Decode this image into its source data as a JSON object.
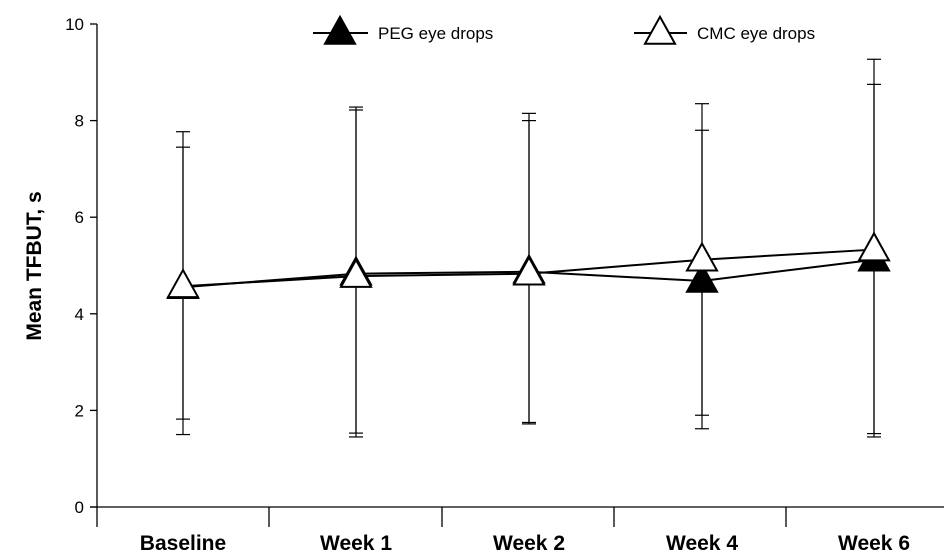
{
  "chart_data": {
    "type": "line",
    "categories": [
      "Baseline",
      "Week 1",
      "Week 2",
      "Week 4",
      "Week 6"
    ],
    "ylabel": "Mean TFBUT, s",
    "ylim": [
      0,
      10
    ],
    "yticks": [
      0,
      2,
      4,
      6,
      8,
      10
    ],
    "grid": false,
    "legend_position": "top",
    "series": [
      {
        "name": "PEG eye drops",
        "marker": "filled-triangle",
        "color": "#000000",
        "values": [
          4.55,
          4.83,
          4.87,
          4.68,
          5.12
        ],
        "error_lower": [
          1.5,
          1.45,
          1.72,
          1.62,
          1.45
        ],
        "error_upper": [
          7.45,
          8.28,
          8.15,
          7.8,
          8.75
        ]
      },
      {
        "name": "CMC eye drops",
        "marker": "open-triangle",
        "color": "#000000",
        "values": [
          4.57,
          4.78,
          4.83,
          5.12,
          5.33
        ],
        "error_lower": [
          1.82,
          1.53,
          1.75,
          1.9,
          1.52
        ],
        "error_upper": [
          7.77,
          8.22,
          8.0,
          8.35,
          9.27
        ]
      }
    ]
  }
}
